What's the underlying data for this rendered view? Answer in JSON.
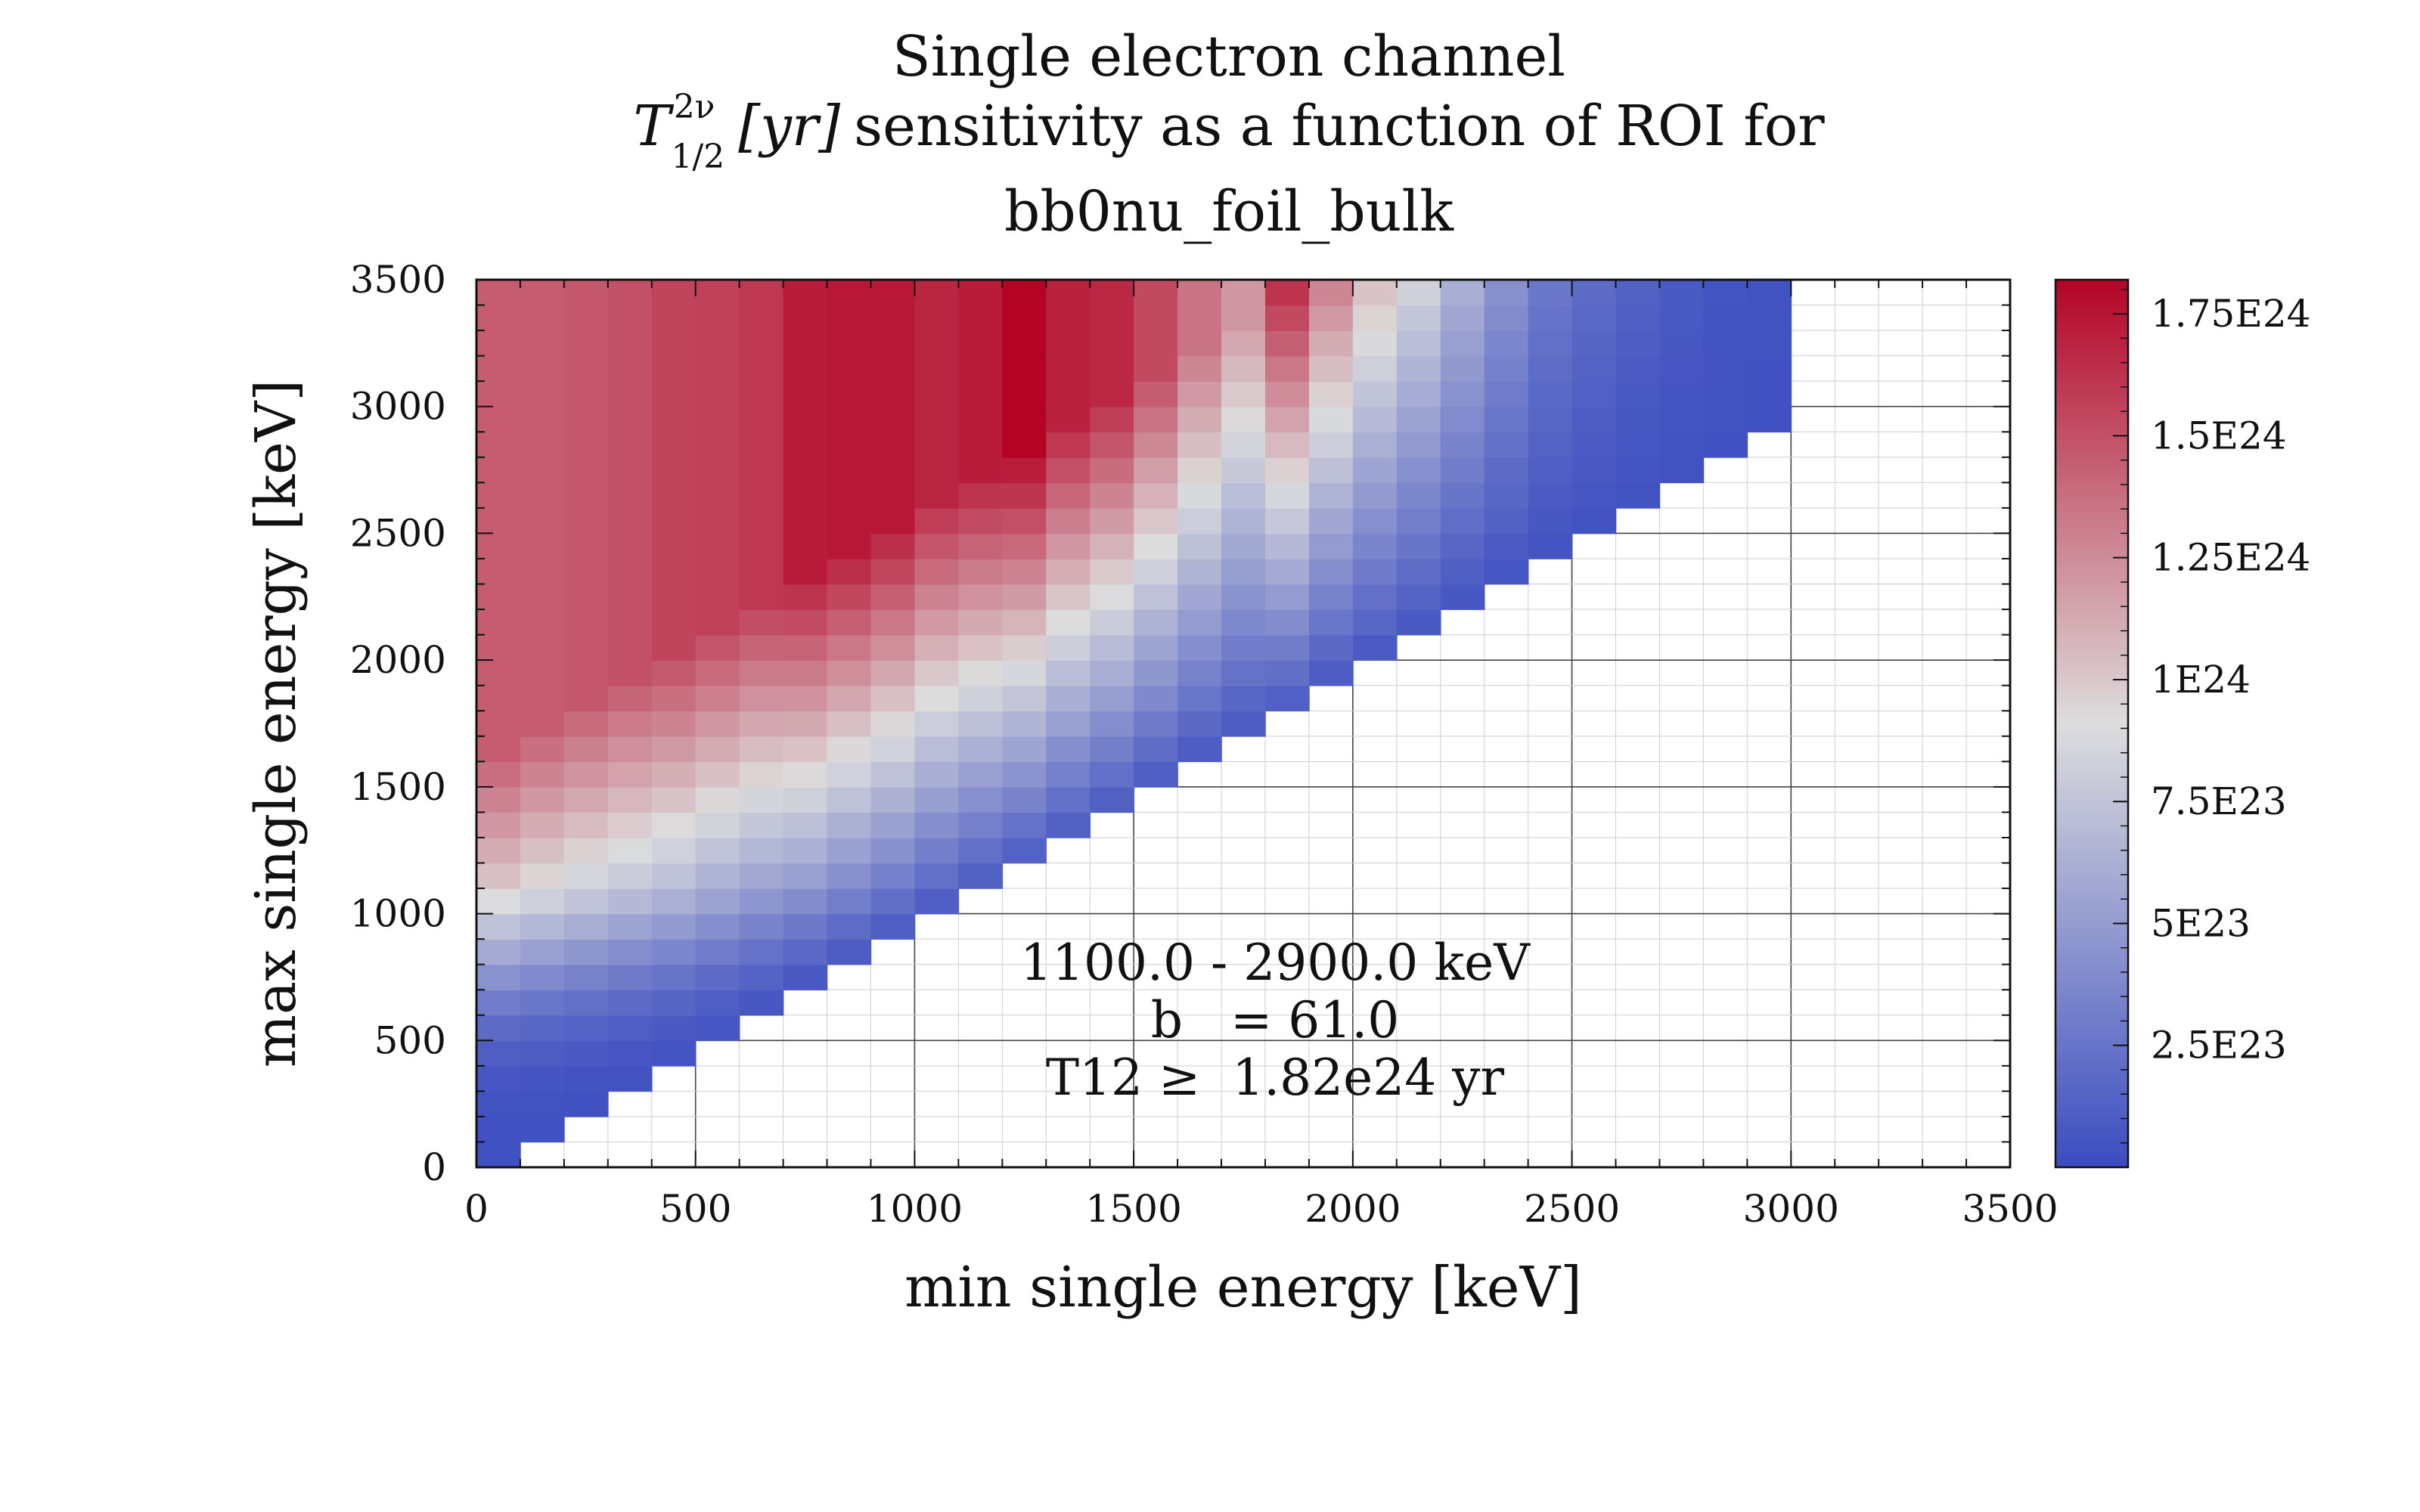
{
  "chart_data": {
    "type": "heatmap",
    "title_lines": [
      "Single electron channel",
      "sensitivity as a function of ROI for",
      "bb0nu_foil_bulk"
    ],
    "title_math": {
      "base": "T",
      "sub": "1/2",
      "sup": "2ν",
      "unit": "[yr]"
    },
    "xlabel": "min single energy [keV]",
    "ylabel": "max single energy [keV]",
    "xlim": [
      0,
      3500
    ],
    "ylim": [
      0,
      3500
    ],
    "x_ticks": [
      "0",
      "500",
      "1000",
      "1500",
      "2000",
      "2500",
      "3000",
      "3500"
    ],
    "y_ticks": [
      "0",
      "500",
      "1000",
      "1500",
      "2000",
      "2500",
      "3000",
      "3500"
    ],
    "bin_width": 100,
    "x_bin_count": 30,
    "y_bin_count": 35,
    "colormap": "coolwarm",
    "color_low": "#3b4cc0",
    "color_mid": "#dddddd",
    "color_high": "#b40426",
    "color_scale": [
      0,
      1.82e+24
    ],
    "colorbar_ticks": [
      {
        "value": 2.5e+23,
        "label": "2.5E23"
      },
      {
        "value": 5e+23,
        "label": "5E23"
      },
      {
        "value": 7.5e+23,
        "label": "7.5E23"
      },
      {
        "value": 1e+24,
        "label": "1E24"
      },
      {
        "value": 1.25e+24,
        "label": "1.25E24"
      },
      {
        "value": 1.5e+24,
        "label": "1.5E24"
      },
      {
        "value": 1.75e+24,
        "label": "1.75E24"
      }
    ],
    "sensitivity_model": {
      "top_row_by_min_energy_bin": [
        1.45e+24,
        1.45e+24,
        1.47e+24,
        1.5e+24,
        1.55e+24,
        1.57e+24,
        1.6e+24,
        1.72e+24,
        1.74e+24,
        1.74e+24,
        1.68e+24,
        1.72e+24,
        1.82e+24,
        1.7e+24,
        1.67e+24,
        1.53e+24,
        1.35e+24,
        1.2e+24,
        1.62e+24,
        1.35e+24,
        1.15e+24,
        1e+24,
        8e+23,
        6e+23,
        4e+23,
        3e+23,
        2.2e+23,
        1.5e+23,
        8e+22,
        5e+22
      ],
      "saturation_energy": 2500,
      "onset_energy": 200,
      "saturation_width": 1050,
      "diagonal_floor": 3e+22,
      "diagonal_ramp": 1700
    },
    "grid": "major and minor",
    "annotation": {
      "roi": "1100.0 - 2900.0 keV",
      "background": "b   = 61.0",
      "result": "T12 ≥  1.82e24 yr"
    }
  }
}
